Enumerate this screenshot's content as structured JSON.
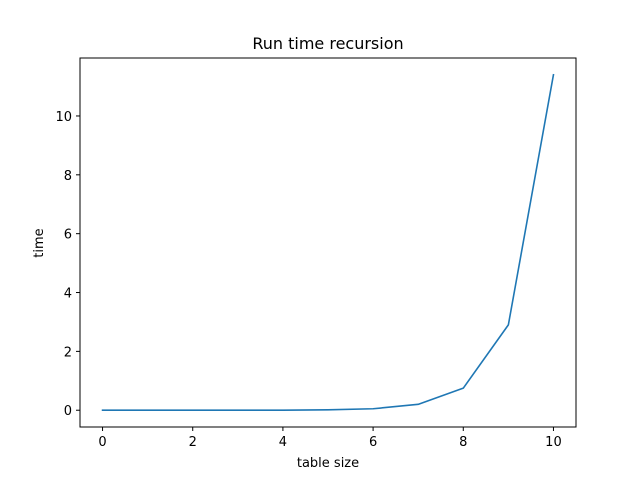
{
  "chart_data": {
    "type": "line",
    "title": "Run time recursion",
    "xlabel": "table size",
    "ylabel": "time",
    "xlim": [
      -0.5,
      10.5
    ],
    "ylim": [
      -0.57,
      11.97
    ],
    "xticks": [
      0,
      2,
      4,
      6,
      8,
      10
    ],
    "yticks": [
      0,
      2,
      4,
      6,
      8,
      10
    ],
    "grid": false,
    "series": [
      {
        "color": "#1f77b4",
        "x": [
          0,
          1,
          2,
          3,
          4,
          5,
          6,
          7,
          8,
          9,
          10
        ],
        "y": [
          0.0,
          0.0,
          0.0,
          0.0,
          0.003,
          0.015,
          0.05,
          0.2,
          0.75,
          2.9,
          11.4
        ]
      }
    ]
  }
}
